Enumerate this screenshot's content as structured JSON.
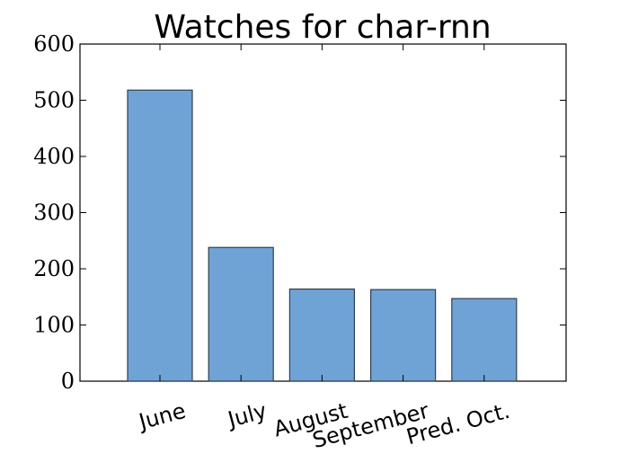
{
  "chart_data": {
    "type": "bar",
    "title": "Watches for char-rnn",
    "xlabel": "",
    "ylabel": "",
    "categories": [
      "June",
      "July",
      "August",
      "September",
      "Pred. Oct."
    ],
    "values": [
      518,
      238,
      164,
      163,
      147
    ],
    "ylim": [
      0,
      600
    ],
    "yticks": [
      "0",
      "100",
      "200",
      "300",
      "400",
      "500",
      "600"
    ],
    "ytick_values": [
      0,
      100,
      200,
      300,
      400,
      500,
      600
    ],
    "xtick_rotation_deg": 15,
    "grid": false,
    "legend": "none",
    "bar_color": "#6fa3d6",
    "bar_edge_color": "#2f3f4f"
  }
}
